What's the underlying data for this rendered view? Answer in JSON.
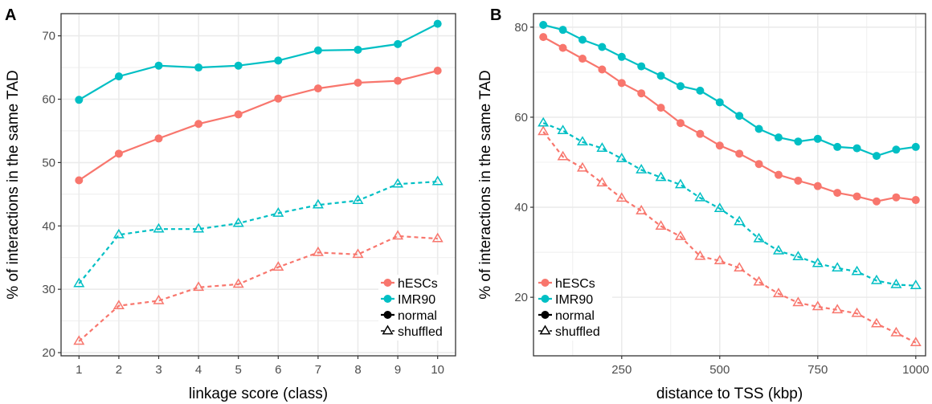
{
  "colors": {
    "hESCs": "#f8766d",
    "IMR90": "#00bfc4",
    "grid": "#ebebeb",
    "border": "#333333"
  },
  "chart_data": [
    {
      "panel": "A",
      "type": "line",
      "xlabel": "linkage score (class)",
      "ylabel": "% of interactions in the same TAD",
      "xlim": [
        0.55,
        10.45
      ],
      "ylim": [
        19.5,
        73.5
      ],
      "x_ticks": [
        1,
        2,
        3,
        4,
        5,
        6,
        7,
        8,
        9,
        10
      ],
      "y_ticks": [
        20,
        30,
        40,
        50,
        60,
        70
      ],
      "grid": true,
      "legend": {
        "position": "bottom-right",
        "entries": [
          "hESCs",
          "IMR90",
          "normal",
          "shuffled"
        ]
      },
      "series": [
        {
          "name": "hESCs",
          "kind": "normal",
          "color": "#f8766d",
          "x": [
            1,
            2,
            3,
            4,
            5,
            6,
            7,
            8,
            9,
            10
          ],
          "y": [
            47.2,
            51.4,
            53.8,
            56.1,
            57.6,
            60.1,
            61.7,
            62.6,
            62.9,
            64.5
          ]
        },
        {
          "name": "IMR90",
          "kind": "normal",
          "color": "#00bfc4",
          "x": [
            1,
            2,
            3,
            4,
            5,
            6,
            7,
            8,
            9,
            10
          ],
          "y": [
            59.9,
            63.6,
            65.3,
            65.0,
            65.3,
            66.1,
            67.7,
            67.8,
            68.7,
            71.9
          ]
        },
        {
          "name": "hESCs",
          "kind": "shuffled",
          "color": "#f8766d",
          "x": [
            1,
            2,
            3,
            4,
            5,
            6,
            7,
            8,
            9,
            10
          ],
          "y": [
            21.8,
            27.4,
            28.2,
            30.3,
            30.8,
            33.5,
            35.8,
            35.5,
            38.4,
            38.0
          ]
        },
        {
          "name": "IMR90",
          "kind": "shuffled",
          "color": "#00bfc4",
          "x": [
            1,
            2,
            3,
            4,
            5,
            6,
            7,
            8,
            9,
            10
          ],
          "y": [
            30.9,
            38.6,
            39.5,
            39.5,
            40.4,
            42.0,
            43.3,
            44.0,
            46.6,
            47.0
          ]
        }
      ]
    },
    {
      "panel": "B",
      "type": "line",
      "xlabel": "distance to TSS (kbp)",
      "ylabel": "% of interactions in the same TAD",
      "xlim": [
        25,
        1025
      ],
      "ylim": [
        7,
        83
      ],
      "x_ticks": [
        250,
        500,
        750,
        1000
      ],
      "y_ticks": [
        20,
        40,
        60,
        80
      ],
      "grid": true,
      "legend": {
        "position": "bottom-left",
        "entries": [
          "hESCs",
          "IMR90",
          "normal",
          "shuffled"
        ]
      },
      "series": [
        {
          "name": "hESCs",
          "kind": "normal",
          "color": "#f8766d",
          "x": [
            50,
            100,
            150,
            200,
            250,
            300,
            350,
            400,
            450,
            500,
            550,
            600,
            650,
            700,
            750,
            800,
            850,
            900,
            950,
            1000
          ],
          "y": [
            77.8,
            75.4,
            73.0,
            70.6,
            67.6,
            65.3,
            62.1,
            58.7,
            56.3,
            53.7,
            51.9,
            49.6,
            47.2,
            45.9,
            44.7,
            43.2,
            42.4,
            41.3,
            42.2,
            41.6
          ]
        },
        {
          "name": "IMR90",
          "kind": "normal",
          "color": "#00bfc4",
          "x": [
            50,
            100,
            150,
            200,
            250,
            300,
            350,
            400,
            450,
            500,
            550,
            600,
            650,
            700,
            750,
            800,
            850,
            900,
            950,
            1000
          ],
          "y": [
            80.5,
            79.4,
            77.2,
            75.6,
            73.4,
            71.3,
            69.2,
            66.9,
            65.9,
            63.3,
            60.3,
            57.4,
            55.5,
            54.6,
            55.2,
            53.4,
            53.1,
            51.4,
            52.8,
            53.4
          ]
        },
        {
          "name": "hESCs",
          "kind": "shuffled",
          "color": "#f8766d",
          "x": [
            50,
            100,
            150,
            200,
            250,
            300,
            350,
            400,
            450,
            500,
            550,
            600,
            650,
            700,
            750,
            800,
            850,
            900,
            950,
            1000
          ],
          "y": [
            56.8,
            51.2,
            48.7,
            45.4,
            42.0,
            39.2,
            35.8,
            33.5,
            29.1,
            28.1,
            26.5,
            23.4,
            20.8,
            18.8,
            17.9,
            17.2,
            16.4,
            14.1,
            12.1,
            9.9
          ]
        },
        {
          "name": "IMR90",
          "kind": "shuffled",
          "color": "#00bfc4",
          "x": [
            50,
            100,
            150,
            200,
            250,
            300,
            350,
            400,
            450,
            500,
            550,
            600,
            650,
            700,
            750,
            800,
            850,
            900,
            950,
            1000
          ],
          "y": [
            58.7,
            57.0,
            54.5,
            53.1,
            50.8,
            48.3,
            46.6,
            45.0,
            42.1,
            39.7,
            36.8,
            33.0,
            30.3,
            29.0,
            27.5,
            26.5,
            25.7,
            23.7,
            22.8,
            22.6
          ]
        }
      ]
    }
  ]
}
